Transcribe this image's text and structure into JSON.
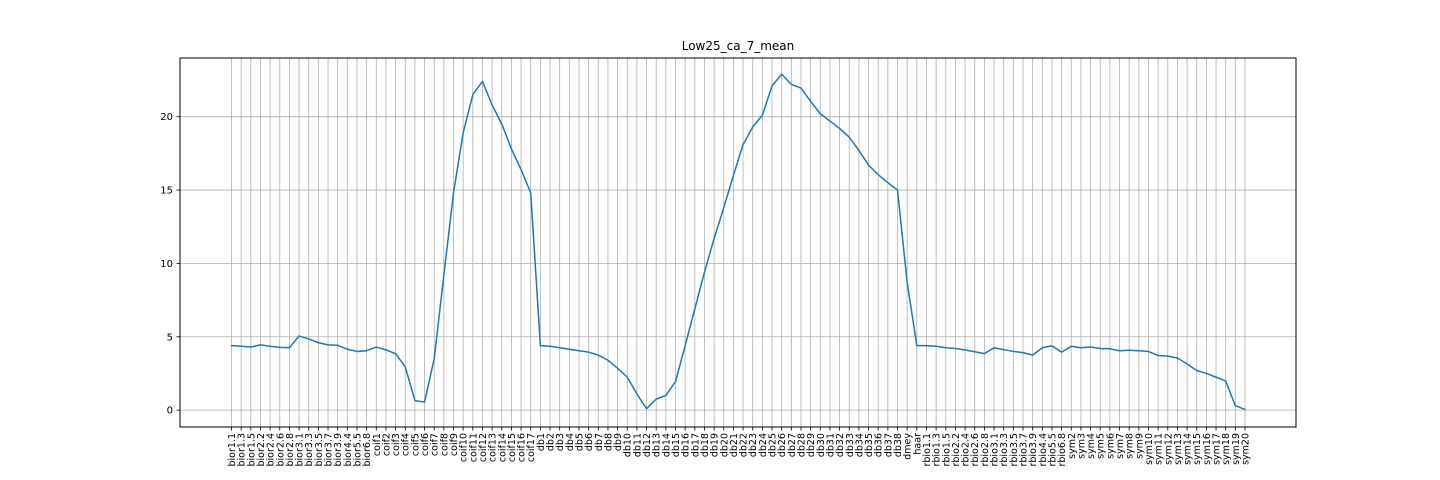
{
  "chart_data": {
    "type": "line",
    "title": "Low25_ca_7_mean",
    "xlabel": "",
    "ylabel": "",
    "ylim": [
      -1.15,
      24.0
    ],
    "yticks": [
      0,
      5,
      10,
      15,
      20
    ],
    "grid": true,
    "line_color": "#1f77b4",
    "categories": [
      "bior1.1",
      "bior1.3",
      "bior1.5",
      "bior2.2",
      "bior2.4",
      "bior2.6",
      "bior2.8",
      "bior3.1",
      "bior3.3",
      "bior3.5",
      "bior3.7",
      "bior3.9",
      "bior4.4",
      "bior5.5",
      "bior6.8",
      "coif1",
      "coif2",
      "coif3",
      "coif4",
      "coif5",
      "coif6",
      "coif7",
      "coif8",
      "coif9",
      "coif10",
      "coif11",
      "coif12",
      "coif13",
      "coif14",
      "coif15",
      "coif16",
      "coif17",
      "db1",
      "db2",
      "db3",
      "db4",
      "db5",
      "db6",
      "db7",
      "db8",
      "db9",
      "db10",
      "db11",
      "db12",
      "db13",
      "db14",
      "db15",
      "db16",
      "db17",
      "db18",
      "db19",
      "db20",
      "db21",
      "db22",
      "db23",
      "db24",
      "db25",
      "db26",
      "db27",
      "db28",
      "db29",
      "db30",
      "db31",
      "db32",
      "db33",
      "db34",
      "db35",
      "db36",
      "db37",
      "db38",
      "dmey",
      "haar",
      "rbio1.1",
      "rbio1.3",
      "rbio1.5",
      "rbio2.2",
      "rbio2.4",
      "rbio2.6",
      "rbio2.8",
      "rbio3.1",
      "rbio3.3",
      "rbio3.5",
      "rbio3.7",
      "rbio3.9",
      "rbio4.4",
      "rbio5.5",
      "rbio6.8",
      "sym2",
      "sym3",
      "sym4",
      "sym5",
      "sym6",
      "sym7",
      "sym8",
      "sym9",
      "sym10",
      "sym11",
      "sym12",
      "sym13",
      "sym14",
      "sym15",
      "sym16",
      "sym17",
      "sym18",
      "sym19",
      "sym20"
    ],
    "values": [
      4.4,
      4.35,
      4.3,
      4.45,
      4.35,
      4.28,
      4.25,
      5.05,
      4.85,
      4.6,
      4.45,
      4.42,
      4.15,
      4.0,
      4.05,
      4.3,
      4.1,
      3.85,
      2.95,
      0.65,
      0.55,
      3.5,
      9.2,
      14.8,
      18.9,
      21.5,
      22.4,
      20.8,
      19.5,
      17.8,
      16.4,
      14.8,
      4.4,
      4.35,
      4.25,
      4.15,
      4.05,
      3.95,
      3.75,
      3.4,
      2.85,
      2.25,
      1.1,
      0.1,
      0.75,
      1.0,
      1.95,
      4.4,
      6.9,
      9.4,
      11.7,
      13.8,
      16.0,
      18.1,
      19.3,
      20.1,
      22.1,
      22.9,
      22.2,
      21.95,
      21.05,
      20.2,
      19.7,
      19.2,
      18.6,
      17.7,
      16.7,
      16.05,
      15.5,
      15.0,
      8.7,
      4.4,
      4.4,
      4.35,
      4.25,
      4.2,
      4.1,
      3.98,
      3.85,
      4.25,
      4.12,
      4.0,
      3.92,
      3.75,
      4.25,
      4.38,
      3.95,
      4.35,
      4.25,
      4.3,
      4.2,
      4.18,
      4.05,
      4.08,
      4.05,
      4.0,
      3.72,
      3.68,
      3.55,
      3.15,
      2.7,
      2.5,
      2.25,
      1.98,
      0.3,
      0.05
    ]
  }
}
